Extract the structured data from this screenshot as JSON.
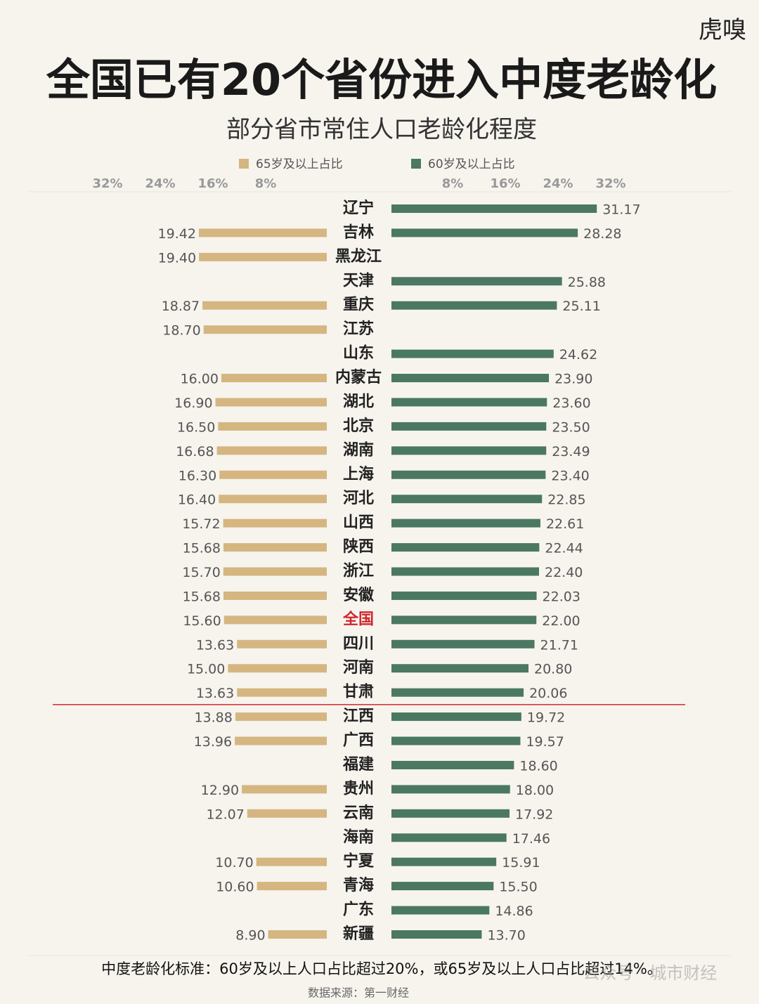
{
  "brand": "虎嗅",
  "chart_data": {
    "type": "butterfly-bar",
    "title": "全国已有20个省份进入中度老龄化",
    "subtitle": "部分省市常住人口老龄化程度",
    "categories": [
      "辽宁",
      "吉林",
      "黑龙江",
      "天津",
      "重庆",
      "江苏",
      "山东",
      "内蒙古",
      "湖北",
      "北京",
      "湖南",
      "上海",
      "河北",
      "山西",
      "陕西",
      "浙江",
      "安徽",
      "全国",
      "四川",
      "河南",
      "甘肃",
      "江西",
      "广西",
      "福建",
      "贵州",
      "云南",
      "海南",
      "宁夏",
      "青海",
      "广东",
      "新疆"
    ],
    "series": [
      {
        "name": "65岁及以上占比",
        "color": "#d5b681",
        "side": "left",
        "values": [
          null,
          19.42,
          19.4,
          null,
          18.87,
          18.7,
          null,
          16.0,
          16.9,
          16.5,
          16.68,
          16.3,
          16.4,
          15.72,
          15.68,
          15.7,
          15.68,
          15.6,
          13.63,
          15.0,
          13.63,
          13.88,
          13.96,
          null,
          12.9,
          12.07,
          null,
          10.7,
          10.6,
          null,
          8.9
        ],
        "value_labels": [
          null,
          "19.42",
          "19.40",
          null,
          "18.87",
          "18.70",
          null,
          "16.00",
          "16.90",
          "16.50",
          "16.68",
          "16.30",
          "16.40",
          "15.72",
          "15.68",
          "15.70",
          "15.68",
          "15.60",
          "13.63",
          "15.00",
          "13.63",
          "13.88",
          "13.96",
          null,
          "12.90",
          "12.07",
          null,
          "10.70",
          "10.60",
          null,
          "8.90"
        ]
      },
      {
        "name": "60岁及以上占比",
        "color": "#4b7862",
        "side": "right",
        "values": [
          31.17,
          28.28,
          null,
          25.88,
          25.11,
          null,
          24.62,
          23.9,
          23.6,
          23.5,
          23.49,
          23.4,
          22.85,
          22.61,
          22.44,
          22.4,
          22.03,
          22.0,
          21.71,
          20.8,
          20.06,
          19.72,
          19.57,
          18.6,
          18.0,
          17.92,
          17.46,
          15.91,
          15.5,
          14.86,
          13.7
        ],
        "value_labels": [
          "31.17",
          "28.28",
          null,
          "25.88",
          "25.11",
          null,
          "24.62",
          "23.90",
          "23.60",
          "23.50",
          "23.49",
          "23.40",
          "22.85",
          "22.61",
          "22.44",
          "22.40",
          "22.03",
          "22.00",
          "21.71",
          "20.80",
          "20.06",
          "19.72",
          "19.57",
          "18.60",
          "18.00",
          "17.92",
          "17.46",
          "15.91",
          "15.50",
          "14.86",
          "13.70"
        ]
      }
    ],
    "xlim": [
      0,
      32
    ],
    "xticks": [
      {
        "value": 8,
        "label": "8%"
      },
      {
        "value": 16,
        "label": "16%"
      },
      {
        "value": 24,
        "label": "24%"
      },
      {
        "value": 32,
        "label": "32%"
      }
    ],
    "highlight": {
      "category": "全国",
      "color": "#d0262b"
    },
    "footnote": "中度老龄化标准：60岁及以上人口占比超过20%，或65岁及以上人口占比超过14%。",
    "source": "数据来源：第一财经",
    "watermark": "公众号 · 城市财经"
  }
}
